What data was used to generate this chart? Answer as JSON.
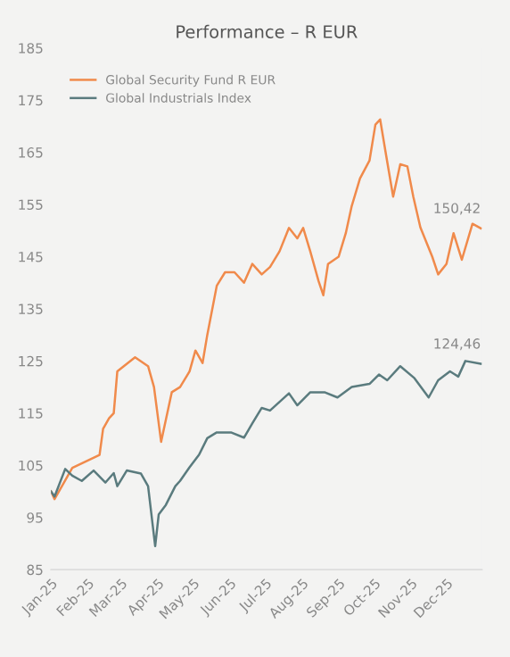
{
  "chart_data": {
    "type": "line",
    "title": "Performance – R EUR",
    "ylim": [
      85,
      185
    ],
    "yticks": [
      85,
      95,
      105,
      115,
      125,
      135,
      145,
      155,
      165,
      175,
      185
    ],
    "xlim": [
      "2025-01-01",
      "2025-12-31"
    ],
    "xticks": [
      {
        "value": "2025-01-01",
        "label": "Jan-25"
      },
      {
        "value": "2025-02-01",
        "label": "Feb-25"
      },
      {
        "value": "2025-03-01",
        "label": "Mar-25"
      },
      {
        "value": "2025-04-01",
        "label": "Apr-25"
      },
      {
        "value": "2025-05-01",
        "label": "May-25"
      },
      {
        "value": "2025-06-01",
        "label": "Jun-25"
      },
      {
        "value": "2025-07-01",
        "label": "Jul-25"
      },
      {
        "value": "2025-08-01",
        "label": "Aug-25"
      },
      {
        "value": "2025-09-01",
        "label": "Sep-25"
      },
      {
        "value": "2025-10-01",
        "label": "Oct-25"
      },
      {
        "value": "2025-11-01",
        "label": "Nov-25"
      },
      {
        "value": "2025-12-01",
        "label": "Dec-25"
      }
    ],
    "grid": false,
    "legend": "top left",
    "marker": "none",
    "line_style": "solid",
    "series": [
      {
        "name": "Global Security Fund R EUR",
        "color": "#f08a4b",
        "x": [
          "2025-01-01",
          "2025-01-04",
          "2025-01-19",
          "2025-02-11",
          "2025-02-14",
          "2025-02-19",
          "2025-02-23",
          "2025-02-26",
          "2025-03-13",
          "2025-03-24",
          "2025-03-29",
          "2025-04-04",
          "2025-04-13",
          "2025-04-20",
          "2025-04-28",
          "2025-05-03",
          "2025-05-09",
          "2025-05-13",
          "2025-05-21",
          "2025-05-28",
          "2025-06-05",
          "2025-06-13",
          "2025-06-20",
          "2025-06-28",
          "2025-07-05",
          "2025-07-13",
          "2025-07-21",
          "2025-07-28",
          "2025-08-02",
          "2025-08-08",
          "2025-08-15",
          "2025-08-19",
          "2025-08-23",
          "2025-09-01",
          "2025-09-07",
          "2025-09-12",
          "2025-09-19",
          "2025-09-27",
          "2025-10-02",
          "2025-10-06",
          "2025-10-11",
          "2025-10-17",
          "2025-10-23",
          "2025-10-29",
          "2025-11-03",
          "2025-11-09",
          "2025-11-19",
          "2025-11-24",
          "2025-12-01",
          "2025-12-07",
          "2025-12-14",
          "2025-12-23",
          "2025-12-30"
        ],
        "values": [
          100,
          98.5,
          104.5,
          107,
          112,
          114,
          115,
          123,
          125.7,
          124,
          120,
          109.5,
          119,
          120,
          123,
          127,
          124.6,
          130,
          139.4,
          142,
          142,
          140,
          143.6,
          141.6,
          143,
          146,
          150.5,
          148.5,
          150.5,
          146,
          140.3,
          137.6,
          143.6,
          145,
          149.5,
          154.7,
          160,
          163.4,
          170.3,
          171.3,
          164.5,
          156.5,
          162.7,
          162.3,
          156.5,
          150.6,
          145,
          141.6,
          143.6,
          149.5,
          144.4,
          151.3,
          150.42
        ]
      },
      {
        "name": "Global Industrials Index",
        "color": "#5a7b7e",
        "x": [
          "2025-01-01",
          "2025-01-04",
          "2025-01-13",
          "2025-01-19",
          "2025-01-27",
          "2025-02-06",
          "2025-02-16",
          "2025-02-23",
          "2025-02-26",
          "2025-03-06",
          "2025-03-18",
          "2025-03-24",
          "2025-03-30",
          "2025-04-02",
          "2025-04-08",
          "2025-04-16",
          "2025-04-20",
          "2025-04-28",
          "2025-05-06",
          "2025-05-13",
          "2025-05-21",
          "2025-06-02",
          "2025-06-13",
          "2025-06-20",
          "2025-06-28",
          "2025-07-05",
          "2025-07-21",
          "2025-07-28",
          "2025-08-08",
          "2025-08-20",
          "2025-08-31",
          "2025-09-12",
          "2025-09-27",
          "2025-10-05",
          "2025-10-12",
          "2025-10-23",
          "2025-11-04",
          "2025-11-16",
          "2025-11-24",
          "2025-12-04",
          "2025-12-11",
          "2025-12-17",
          "2025-12-30"
        ],
        "values": [
          100,
          99,
          104.3,
          103,
          102,
          104,
          101.7,
          103.5,
          101,
          104,
          103.4,
          101,
          89.5,
          95.6,
          97.4,
          101,
          102,
          104.6,
          107,
          110.2,
          111.3,
          111.3,
          110.3,
          113,
          116,
          115.5,
          118.8,
          116.5,
          119,
          119,
          118,
          120,
          120.6,
          122.4,
          121.3,
          124,
          121.7,
          118,
          121.3,
          123,
          122,
          125,
          124.46
        ]
      }
    ],
    "annotations": [
      {
        "text": "150,42",
        "x": "2025-12-30",
        "y": 150.42
      },
      {
        "text": "124,46",
        "x": "2025-12-30",
        "y": 124.46
      }
    ]
  }
}
